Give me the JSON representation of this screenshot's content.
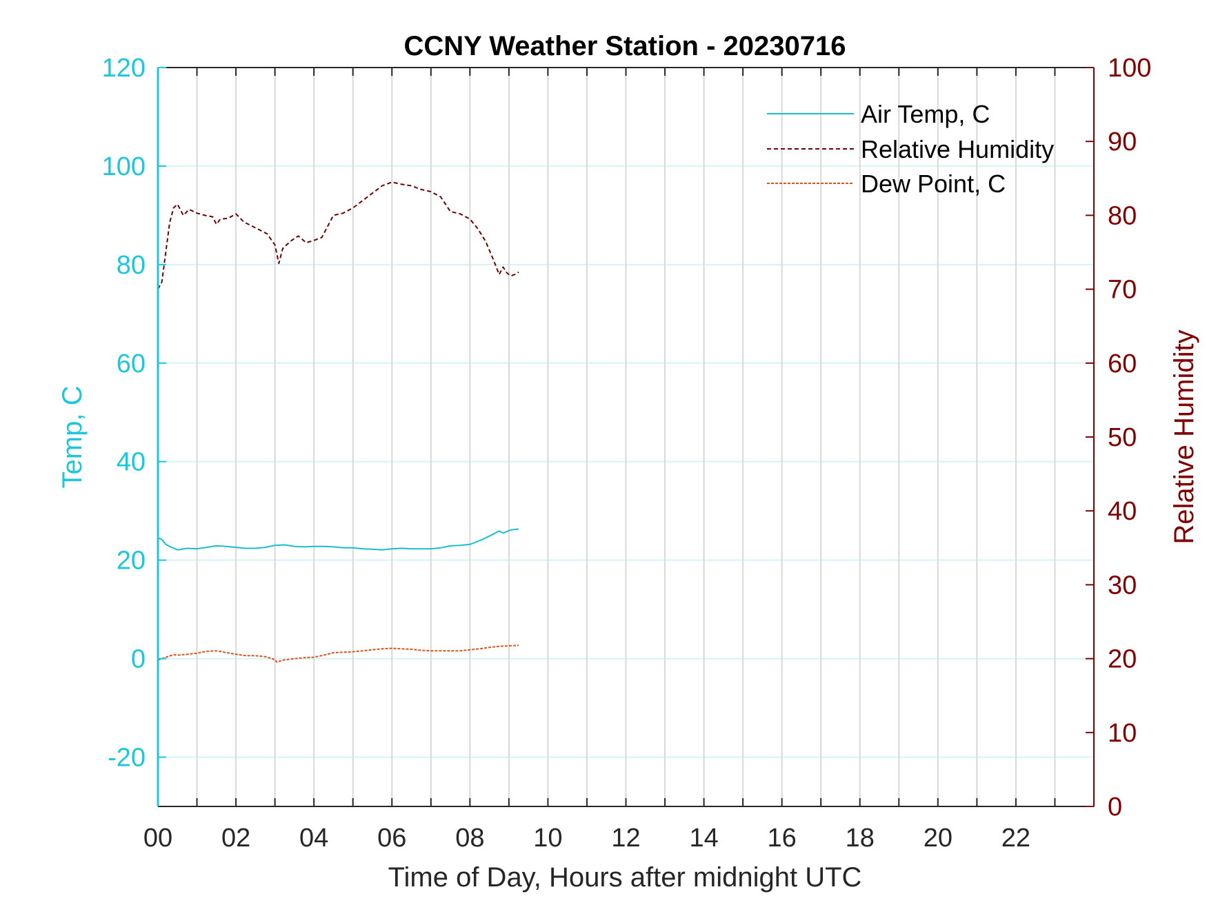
{
  "chart_data": {
    "type": "line",
    "title": "CCNY Weather Station - 20230716",
    "xlabel": "Time of Day, Hours after midnight UTC",
    "ylabel_left": "Temp, C",
    "ylabel_right": "Relative Humidity",
    "xlim": [
      0,
      24
    ],
    "ylim_left": [
      -30,
      120
    ],
    "ylim_right": [
      0,
      100
    ],
    "x_ticks": [
      0,
      2,
      4,
      6,
      8,
      10,
      12,
      14,
      16,
      18,
      20,
      22
    ],
    "x_tick_labels": [
      "00",
      "02",
      "04",
      "06",
      "08",
      "10",
      "12",
      "14",
      "16",
      "18",
      "20",
      "22"
    ],
    "y_left_ticks": [
      -20,
      0,
      20,
      40,
      60,
      80,
      100,
      120
    ],
    "y_left_tick_labels": [
      "-20",
      "0",
      "20",
      "40",
      "60",
      "80",
      "100",
      "120"
    ],
    "y_right_ticks": [
      0,
      10,
      20,
      30,
      40,
      50,
      60,
      70,
      80,
      90,
      100
    ],
    "y_right_tick_labels": [
      "0",
      "10",
      "20",
      "30",
      "40",
      "50",
      "60",
      "70",
      "80",
      "90",
      "100"
    ],
    "grid": true,
    "legend_position": "top-right",
    "colors": {
      "temp_axis": "#1ec6dc",
      "rh_axis": "#800000",
      "air_temp": "#17becf",
      "relative_humidity": "#6b0000",
      "dew_point": "#d95319",
      "grid_vertical": "#d8d8d8",
      "grid_horizontal": "#d6f3f7"
    },
    "series": [
      {
        "name": "Air Temp, C",
        "axis": "left",
        "style": "solid",
        "x": [
          0,
          0.1,
          0.2,
          0.35,
          0.5,
          0.75,
          1.0,
          1.25,
          1.5,
          1.75,
          2.0,
          2.25,
          2.5,
          2.75,
          3.0,
          3.25,
          3.5,
          3.75,
          4.0,
          4.25,
          4.5,
          4.75,
          5.0,
          5.25,
          5.5,
          5.75,
          6.0,
          6.25,
          6.5,
          6.75,
          7.0,
          7.25,
          7.5,
          7.75,
          8.0,
          8.2,
          8.4,
          8.6,
          8.75,
          8.85,
          9.0,
          9.1,
          9.25
        ],
        "y": [
          24.5,
          24.2,
          23.2,
          22.6,
          22.1,
          22.4,
          22.3,
          22.6,
          22.9,
          22.8,
          22.6,
          22.4,
          22.4,
          22.6,
          23.0,
          23.1,
          22.8,
          22.7,
          22.8,
          22.8,
          22.7,
          22.5,
          22.5,
          22.3,
          22.2,
          22.1,
          22.3,
          22.4,
          22.3,
          22.3,
          22.3,
          22.5,
          22.9,
          23.0,
          23.2,
          23.8,
          24.5,
          25.3,
          25.9,
          25.5,
          26.0,
          26.2,
          26.3
        ]
      },
      {
        "name": "Relative Humidity",
        "axis": "right",
        "style": "dashed",
        "x": [
          0,
          0.1,
          0.2,
          0.3,
          0.4,
          0.5,
          0.65,
          0.8,
          1.0,
          1.2,
          1.4,
          1.5,
          1.6,
          1.8,
          2.0,
          2.2,
          2.5,
          2.8,
          3.0,
          3.1,
          3.2,
          3.4,
          3.6,
          3.8,
          4.0,
          4.2,
          4.35,
          4.5,
          4.75,
          5.0,
          5.25,
          5.5,
          5.75,
          6.0,
          6.25,
          6.5,
          6.75,
          7.0,
          7.25,
          7.5,
          7.75,
          8.0,
          8.2,
          8.4,
          8.6,
          8.75,
          8.85,
          8.95,
          9.05,
          9.15,
          9.25
        ],
        "y": [
          70,
          71,
          75,
          79,
          81,
          81.5,
          80,
          80.8,
          80.3,
          80,
          79.8,
          78.8,
          79.5,
          79.6,
          80.2,
          79.1,
          78.3,
          77.5,
          76,
          73.5,
          75.5,
          76.5,
          77.2,
          76.3,
          76.6,
          77,
          78.5,
          80,
          80.3,
          81,
          82,
          83,
          84,
          84.5,
          84.2,
          84,
          83.5,
          83.2,
          82.5,
          80.5,
          80.2,
          79.5,
          78.2,
          76.5,
          74,
          72,
          73,
          72.2,
          71.8,
          72,
          72.3
        ]
      },
      {
        "name": "Dew Point, C",
        "axis": "left",
        "style": "dashed",
        "x": [
          0,
          0.1,
          0.25,
          0.4,
          0.5,
          0.75,
          1.0,
          1.25,
          1.5,
          1.7,
          2.0,
          2.25,
          2.5,
          2.75,
          3.0,
          3.05,
          3.2,
          3.4,
          3.75,
          4.0,
          4.25,
          4.5,
          4.75,
          5.0,
          5.25,
          5.5,
          5.75,
          6.0,
          6.25,
          6.5,
          6.75,
          7.0,
          7.25,
          7.5,
          7.75,
          8.0,
          8.25,
          8.5,
          8.75,
          9.0,
          9.25
        ],
        "y": [
          -0.3,
          0.0,
          0.4,
          0.8,
          0.7,
          0.9,
          1.1,
          1.5,
          1.6,
          1.3,
          0.9,
          0.6,
          0.6,
          0.4,
          -0.2,
          -0.7,
          -0.3,
          -0.1,
          0.2,
          0.3,
          0.7,
          1.2,
          1.3,
          1.4,
          1.6,
          1.8,
          2.0,
          2.1,
          2.0,
          1.9,
          1.7,
          1.6,
          1.6,
          1.6,
          1.6,
          1.8,
          2.0,
          2.3,
          2.5,
          2.6,
          2.7
        ]
      }
    ]
  }
}
